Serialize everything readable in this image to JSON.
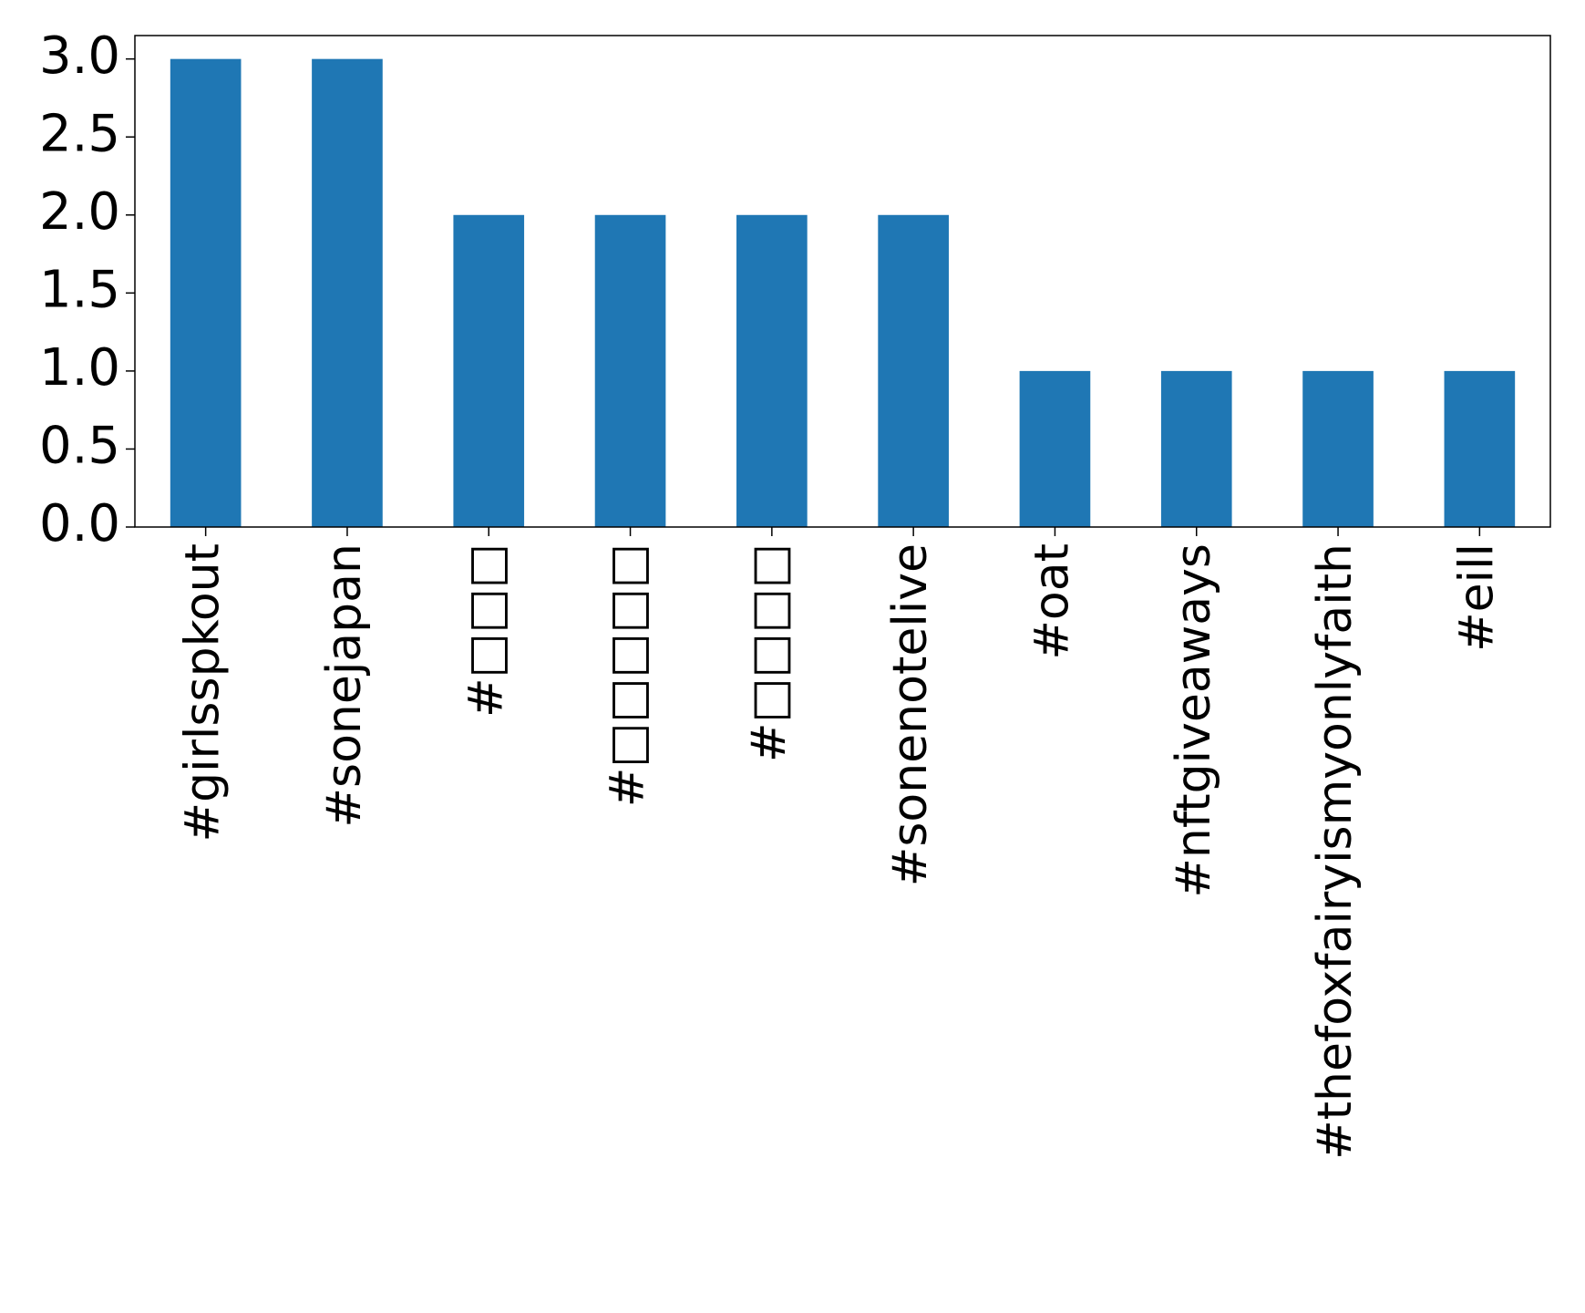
{
  "chart_data": {
    "type": "bar",
    "categories": [
      "#girlsspkout",
      "#sonejapan",
      "#□□□",
      "#□□□□□",
      "#□□□□",
      "#sonenotelive",
      "#oat",
      "#nftgiveaways",
      "#thefoxfairyismyonlyfaith",
      "#eill"
    ],
    "values": [
      3,
      3,
      2,
      2,
      2,
      2,
      1,
      1,
      1,
      1
    ],
    "color": "#1f77b4",
    "ylim": [
      0,
      3.15
    ],
    "yticks": [
      {
        "value": 0,
        "label": "0.0"
      },
      {
        "value": 0.5,
        "label": "0.5"
      },
      {
        "value": 1,
        "label": "1.0"
      },
      {
        "value": 1.5,
        "label": "1.5"
      },
      {
        "value": 2,
        "label": "2.0"
      },
      {
        "value": 2.5,
        "label": "2.5"
      },
      {
        "value": 3,
        "label": "3.0"
      }
    ],
    "grid": false
  }
}
